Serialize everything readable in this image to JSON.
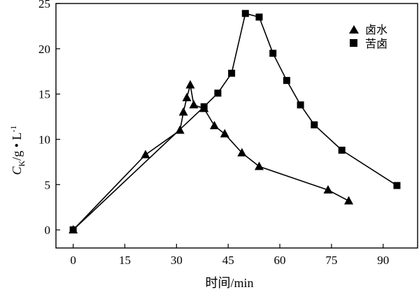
{
  "chart_data": {
    "type": "line",
    "xlabel": "时间/min",
    "ylabel": "C_K/g • L^-1",
    "ylabel_parts": {
      "main": "C",
      "sub": "K",
      "unit": "/g • L",
      "sup": "-1"
    },
    "xlim": [
      -5,
      100
    ],
    "ylim": [
      -2,
      25
    ],
    "x_ticks": [
      0,
      15,
      30,
      45,
      60,
      75,
      90
    ],
    "y_ticks": [
      0,
      5,
      10,
      15,
      20,
      25
    ],
    "x_tick_labels": [
      "0",
      "15",
      "30",
      "45",
      "60",
      "75",
      "90"
    ],
    "y_tick_labels": [
      "0",
      "5",
      "10",
      "15",
      "20",
      "25"
    ],
    "legend_position": "top-right",
    "grid": false,
    "series": [
      {
        "name": "卤水",
        "marker": "triangle",
        "color": "#000000",
        "points": [
          [
            0,
            0
          ],
          [
            21,
            8.3
          ],
          [
            31,
            11.0
          ],
          [
            32,
            13.0
          ],
          [
            33,
            14.6
          ],
          [
            34,
            16.0
          ],
          [
            35,
            13.8
          ],
          [
            38,
            13.4
          ],
          [
            41,
            11.5
          ],
          [
            44,
            10.6
          ],
          [
            49,
            8.5
          ],
          [
            54,
            7.0
          ],
          [
            74,
            4.4
          ],
          [
            80,
            3.2
          ]
        ]
      },
      {
        "name": "苦卤",
        "marker": "square",
        "color": "#000000",
        "points": [
          [
            0,
            0
          ],
          [
            38,
            13.6
          ],
          [
            42,
            15.1
          ],
          [
            46,
            17.3
          ],
          [
            50,
            23.9
          ],
          [
            54,
            23.5
          ],
          [
            58,
            19.5
          ],
          [
            62,
            16.5
          ],
          [
            66,
            13.8
          ],
          [
            70,
            11.6
          ],
          [
            78,
            8.8
          ],
          [
            94,
            4.9
          ]
        ]
      }
    ]
  }
}
